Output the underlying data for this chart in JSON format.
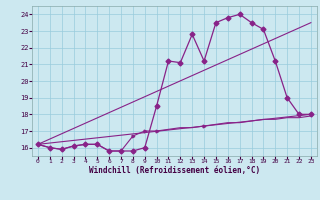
{
  "xlabel": "Windchill (Refroidissement éolien,°C)",
  "bg_color": "#cce8f0",
  "grid_color": "#99ccdd",
  "line_color": "#882288",
  "xmin": -0.5,
  "xmax": 23.5,
  "ymin": 15.5,
  "ymax": 24.5,
  "yticks": [
    16,
    17,
    18,
    19,
    20,
    21,
    22,
    23,
    24
  ],
  "xticks": [
    0,
    1,
    2,
    3,
    4,
    5,
    6,
    7,
    8,
    9,
    10,
    11,
    12,
    13,
    14,
    15,
    16,
    17,
    18,
    19,
    20,
    21,
    22,
    23
  ],
  "series1_x": [
    0,
    1,
    2,
    3,
    4,
    5,
    6,
    7,
    8,
    9,
    10,
    11,
    12,
    13,
    14,
    15,
    16,
    17,
    18,
    19,
    20,
    21,
    22,
    23
  ],
  "series1_y": [
    16.2,
    16.0,
    15.9,
    16.1,
    16.2,
    16.2,
    15.8,
    15.8,
    15.8,
    16.0,
    18.5,
    21.2,
    21.1,
    22.8,
    21.2,
    23.5,
    23.8,
    24.0,
    23.5,
    23.1,
    21.2,
    19.0,
    18.0,
    18.0
  ],
  "series2_x": [
    0,
    23
  ],
  "series2_y": [
    16.2,
    23.5
  ],
  "series3_x": [
    0,
    23
  ],
  "series3_y": [
    16.2,
    18.0
  ],
  "series4_x": [
    0,
    1,
    2,
    3,
    4,
    5,
    6,
    7,
    8,
    9,
    10,
    11,
    12,
    13,
    14,
    15,
    16,
    17,
    18,
    19,
    20,
    21,
    22,
    23
  ],
  "series4_y": [
    16.2,
    16.0,
    15.9,
    16.1,
    16.2,
    16.2,
    15.8,
    15.8,
    16.7,
    17.0,
    17.0,
    17.1,
    17.2,
    17.2,
    17.3,
    17.4,
    17.5,
    17.5,
    17.6,
    17.7,
    17.7,
    17.8,
    17.8,
    17.9
  ]
}
